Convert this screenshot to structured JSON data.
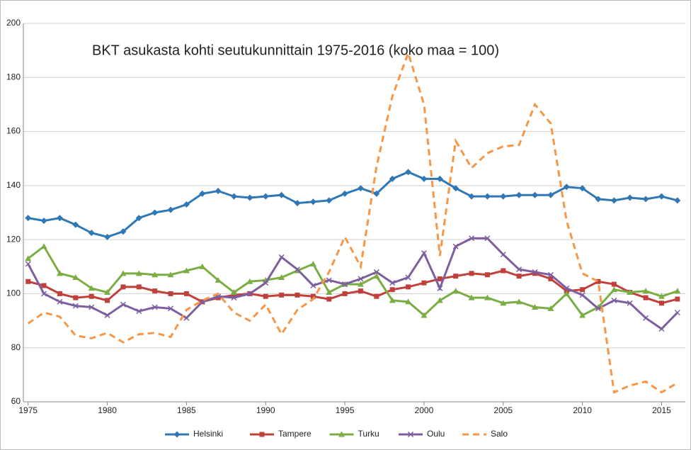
{
  "chart_data": {
    "type": "line",
    "title": "BKT asukasta kohti  seutukunnittain 1975-2016  (koko maa = 100)",
    "x": [
      1975,
      1976,
      1977,
      1978,
      1979,
      1980,
      1981,
      1982,
      1983,
      1984,
      1985,
      1986,
      1987,
      1988,
      1989,
      1990,
      1991,
      1992,
      1993,
      1994,
      1995,
      1996,
      1997,
      1998,
      1999,
      2000,
      2001,
      2002,
      2003,
      2004,
      2005,
      2006,
      2007,
      2008,
      2009,
      2010,
      2011,
      2012,
      2013,
      2014,
      2015,
      2016
    ],
    "xlim": [
      1974.7,
      2016.5
    ],
    "xticks": [
      1975,
      1980,
      1985,
      1990,
      1995,
      2000,
      2005,
      2010,
      2015
    ],
    "ylim": [
      60,
      200
    ],
    "yticks": [
      60,
      80,
      100,
      120,
      140,
      160,
      180,
      200
    ],
    "grid": true,
    "legend": "bottom",
    "series": [
      {
        "name": "Helsinki",
        "color": "#2f78b5",
        "marker": "diamond",
        "dash": false,
        "values": [
          128,
          127,
          128,
          125.5,
          122.5,
          121,
          123,
          128,
          130,
          131,
          133,
          137,
          138,
          136,
          135.5,
          136,
          136.5,
          133.5,
          134,
          134.5,
          137,
          139,
          137,
          142.5,
          145,
          142.5,
          142.5,
          139,
          136,
          136,
          136,
          136.5,
          136.5,
          136.5,
          139.5,
          139,
          135,
          134.5,
          135.5,
          135,
          136,
          134.5
        ]
      },
      {
        "name": "Tampere",
        "color": "#c0413c",
        "marker": "square",
        "dash": false,
        "values": [
          104.5,
          103,
          100,
          98.5,
          99,
          97.5,
          102.5,
          102.5,
          101,
          100,
          100,
          97,
          98.5,
          99.5,
          100,
          99,
          99.5,
          99.5,
          99,
          98,
          100,
          101,
          99,
          101.5,
          102.5,
          104,
          105.5,
          106.5,
          107.5,
          107,
          108.5,
          106.5,
          107.5,
          105.5,
          101,
          101.5,
          104.5,
          103.5,
          100.5,
          98.5,
          96.5,
          98
        ]
      },
      {
        "name": "Turku",
        "color": "#7aae44",
        "marker": "triangle",
        "dash": false,
        "values": [
          113,
          117.5,
          107.5,
          106,
          102,
          100.5,
          107.5,
          107.5,
          107,
          107,
          108.5,
          110,
          105,
          100.5,
          104.5,
          105,
          106,
          108.5,
          111,
          100.5,
          103.5,
          103.5,
          106.5,
          97.5,
          97,
          92,
          97.5,
          101,
          98.5,
          98.5,
          96.5,
          97,
          95,
          94.5,
          100,
          92,
          95,
          101.5,
          100.5,
          101,
          99,
          101
        ]
      },
      {
        "name": "Oulu",
        "color": "#7d5fa0",
        "marker": "x",
        "dash": false,
        "values": [
          111,
          100,
          97,
          95.5,
          95,
          92,
          96,
          93.5,
          95,
          94.5,
          91,
          97,
          99,
          98.5,
          100,
          104,
          113.5,
          109,
          103,
          105,
          103.5,
          105.5,
          108,
          104,
          106,
          115,
          102,
          117.5,
          120.5,
          120.5,
          114.5,
          109,
          108,
          107,
          102,
          99.5,
          94.5,
          97.5,
          96.5,
          91,
          87,
          93
        ]
      },
      {
        "name": "Salo",
        "color": "#f79646",
        "marker": "none",
        "dash": true,
        "values": [
          89,
          93,
          91.5,
          84.5,
          83.5,
          85.5,
          82,
          85,
          85.5,
          84,
          94,
          97.5,
          100,
          93,
          90,
          96,
          85,
          94,
          98,
          108,
          121,
          110,
          147,
          173,
          189,
          170,
          114,
          156.5,
          146.5,
          152,
          154.5,
          155,
          170,
          163,
          127,
          107.5,
          104.5,
          63.5,
          66,
          67.5,
          63.5,
          67
        ]
      }
    ]
  }
}
